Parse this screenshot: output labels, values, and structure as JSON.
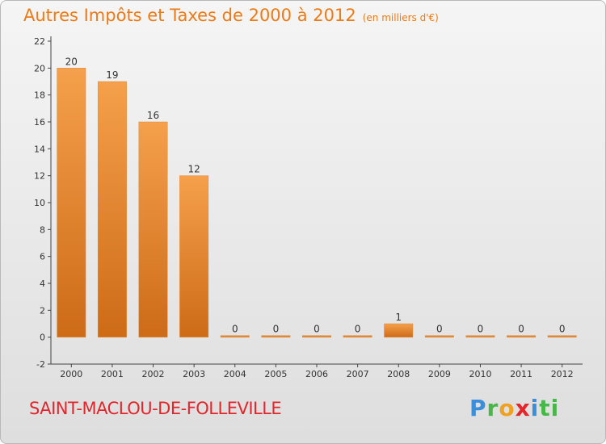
{
  "chart_data": {
    "type": "bar",
    "title": "Autres Impôts et Taxes de 2000 à 2012",
    "unit": "(en milliers d'€)",
    "categories": [
      "2000",
      "2001",
      "2002",
      "2003",
      "2004",
      "2005",
      "2006",
      "2007",
      "2008",
      "2009",
      "2010",
      "2011",
      "2012"
    ],
    "values": [
      20,
      19,
      16,
      12,
      0,
      0,
      0,
      0,
      1,
      0,
      0,
      0,
      0
    ],
    "ylim": [
      -2,
      22
    ],
    "yticks": [
      -2,
      0,
      2,
      4,
      6,
      8,
      10,
      12,
      14,
      16,
      18,
      20,
      22
    ],
    "grid": false,
    "bar_color": "#f5a04c",
    "bar_color_dark": "#cd6b17"
  },
  "commune": "SAINT-MACLOU-DE-FOLLEVILLE",
  "logo": {
    "letters": [
      "P",
      "r",
      "o",
      "x",
      "i",
      "ti"
    ]
  }
}
